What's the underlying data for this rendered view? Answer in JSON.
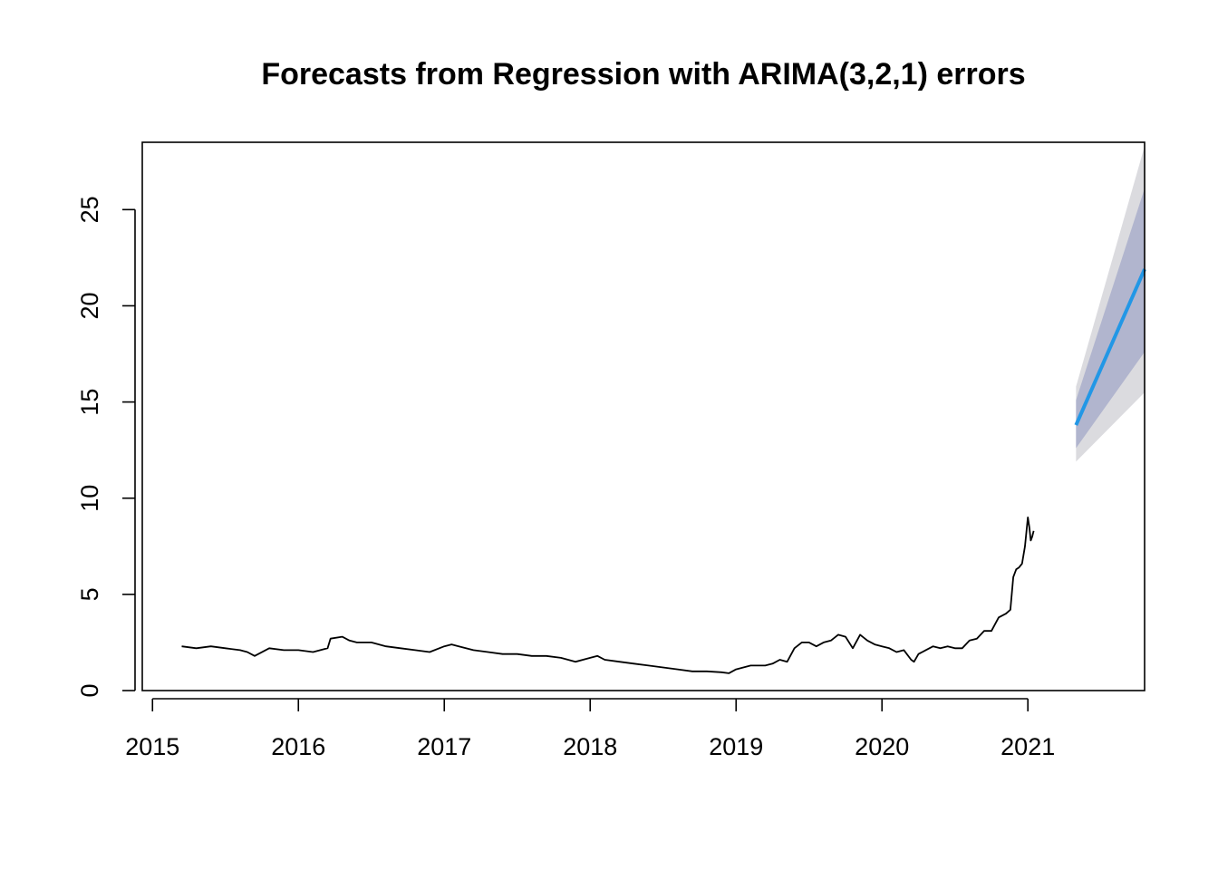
{
  "chart_data": {
    "type": "line",
    "title": "Forecasts from Regression with ARIMA(3,2,1) errors",
    "xlabel": "",
    "ylabel": "",
    "xlim": [
      2014.93,
      2021.8
    ],
    "ylim": [
      0,
      28.5
    ],
    "x_ticks": [
      2015,
      2016,
      2017,
      2018,
      2019,
      2020,
      2021
    ],
    "y_ticks": [
      0,
      5,
      10,
      15,
      20,
      25
    ],
    "grid": false,
    "legend": "none",
    "colors": {
      "observed": "#000000",
      "forecast": "#2297E6",
      "band80": "#B1B5CE",
      "band95": "#DBDBDF"
    },
    "observed": {
      "x": [
        2015.2,
        2015.3,
        2015.4,
        2015.5,
        2015.6,
        2015.65,
        2015.7,
        2015.8,
        2015.9,
        2016.0,
        2016.1,
        2016.2,
        2016.22,
        2016.3,
        2016.35,
        2016.4,
        2016.5,
        2016.6,
        2016.7,
        2016.8,
        2016.9,
        2017.0,
        2017.05,
        2017.1,
        2017.2,
        2017.3,
        2017.4,
        2017.5,
        2017.6,
        2017.7,
        2017.8,
        2017.9,
        2018.0,
        2018.05,
        2018.1,
        2018.2,
        2018.3,
        2018.4,
        2018.5,
        2018.6,
        2018.7,
        2018.8,
        2018.9,
        2018.95,
        2019.0,
        2019.1,
        2019.2,
        2019.25,
        2019.3,
        2019.35,
        2019.4,
        2019.45,
        2019.5,
        2019.55,
        2019.6,
        2019.65,
        2019.7,
        2019.75,
        2019.8,
        2019.85,
        2019.9,
        2019.95,
        2020.0,
        2020.05,
        2020.1,
        2020.15,
        2020.2,
        2020.22,
        2020.25,
        2020.3,
        2020.35,
        2020.4,
        2020.45,
        2020.5,
        2020.55,
        2020.6,
        2020.65,
        2020.7,
        2020.75,
        2020.8,
        2020.85,
        2020.88,
        2020.9,
        2020.92,
        2020.94,
        2020.96,
        2020.98,
        2021.0,
        2021.01,
        2021.02,
        2021.03,
        2021.04
      ],
      "y": [
        2.3,
        2.2,
        2.3,
        2.2,
        2.1,
        2.0,
        1.8,
        2.2,
        2.1,
        2.1,
        2.0,
        2.2,
        2.7,
        2.8,
        2.6,
        2.5,
        2.5,
        2.3,
        2.2,
        2.1,
        2.0,
        2.3,
        2.4,
        2.3,
        2.1,
        2.0,
        1.9,
        1.9,
        1.8,
        1.8,
        1.7,
        1.5,
        1.7,
        1.8,
        1.6,
        1.5,
        1.4,
        1.3,
        1.2,
        1.1,
        1.0,
        1.0,
        0.95,
        0.9,
        1.1,
        1.3,
        1.3,
        1.4,
        1.6,
        1.5,
        2.2,
        2.5,
        2.5,
        2.3,
        2.5,
        2.6,
        2.9,
        2.8,
        2.2,
        2.9,
        2.6,
        2.4,
        2.3,
        2.2,
        2.0,
        2.1,
        1.6,
        1.5,
        1.9,
        2.1,
        2.3,
        2.2,
        2.3,
        2.2,
        2.2,
        2.6,
        2.7,
        3.1,
        3.1,
        3.8,
        4.0,
        4.2,
        5.9,
        6.3,
        6.4,
        6.6,
        7.5,
        9.0,
        8.5,
        7.8,
        8.0,
        8.3
      ]
    },
    "forecast": {
      "x": [
        2021.33,
        2021.8
      ],
      "mean": [
        13.8,
        21.9
      ],
      "lo80": [
        12.6,
        17.6
      ],
      "hi80": [
        15.1,
        26.1
      ],
      "lo95": [
        11.9,
        15.5
      ],
      "hi95": [
        15.8,
        28.3
      ]
    }
  }
}
